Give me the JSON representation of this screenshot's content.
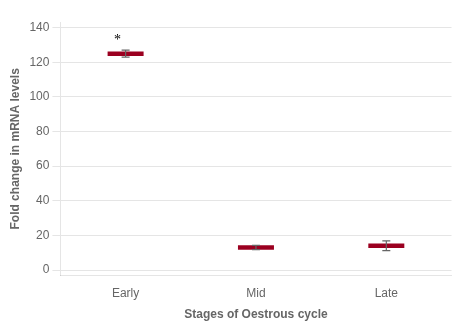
{
  "chart_data": {
    "type": "errorbar",
    "categories": [
      "Early",
      "Mid",
      "Late"
    ],
    "values": [
      125,
      13,
      14
    ],
    "errors": [
      2.0,
      1.2,
      2.8
    ],
    "color": "#9b0020",
    "xlabel": "Stages of Oestrous cycle",
    "ylabel": "Fold change in mRNA levels",
    "ylim": [
      -3,
      143
    ],
    "yticks": [
      0,
      20,
      40,
      60,
      80,
      100,
      120,
      140
    ],
    "grid": true,
    "annotations": [
      {
        "text": "*",
        "category": "Early"
      }
    ]
  }
}
